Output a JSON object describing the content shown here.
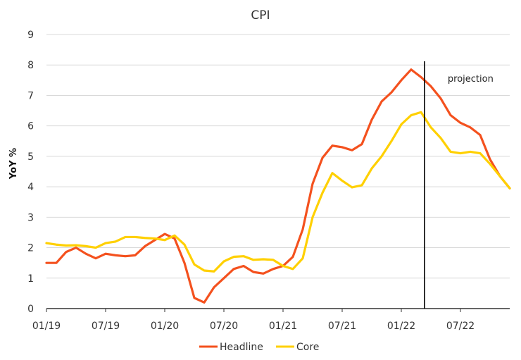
{
  "chart_data": {
    "type": "line",
    "title": "CPI",
    "xlabel": "",
    "ylabel": "YoY %",
    "ylim": [
      0,
      9
    ],
    "yticks": [
      0,
      1,
      2,
      3,
      4,
      5,
      6,
      7,
      8,
      9
    ],
    "grid": "horizontal",
    "legend_position": "bottom",
    "x_tick_labels": [
      "01/19",
      "07/19",
      "01/20",
      "07/20",
      "01/21",
      "07/21",
      "01/22",
      "07/22"
    ],
    "x": [
      "01/19",
      "02/19",
      "03/19",
      "04/19",
      "05/19",
      "06/19",
      "07/19",
      "08/19",
      "09/19",
      "10/19",
      "11/19",
      "12/19",
      "01/20",
      "02/20",
      "03/20",
      "04/20",
      "05/20",
      "06/20",
      "07/20",
      "08/20",
      "09/20",
      "10/20",
      "11/20",
      "12/20",
      "01/21",
      "02/21",
      "03/21",
      "04/21",
      "05/21",
      "06/21",
      "07/21",
      "08/21",
      "09/21",
      "10/21",
      "11/21",
      "12/21",
      "01/22",
      "02/22",
      "03/22",
      "04/22",
      "05/22",
      "06/22",
      "07/22",
      "08/22",
      "09/22",
      "10/22",
      "11/22",
      "12/22"
    ],
    "series": [
      {
        "name": "Headline",
        "color": "#f4511e",
        "values": [
          1.5,
          1.5,
          1.86,
          2.0,
          1.8,
          1.65,
          1.8,
          1.75,
          1.72,
          1.75,
          2.05,
          2.25,
          2.45,
          2.3,
          1.5,
          0.35,
          0.2,
          0.7,
          1.0,
          1.3,
          1.4,
          1.2,
          1.15,
          1.3,
          1.4,
          1.7,
          2.6,
          4.1,
          4.95,
          5.35,
          5.3,
          5.2,
          5.4,
          6.2,
          6.8,
          7.1,
          7.5,
          7.85,
          7.6,
          7.3,
          6.9,
          6.35,
          6.1,
          5.95,
          5.7,
          4.9,
          4.35,
          3.95
        ]
      },
      {
        "name": "Core",
        "color": "#ffd000",
        "values": [
          2.15,
          2.1,
          2.07,
          2.08,
          2.05,
          2.0,
          2.15,
          2.2,
          2.35,
          2.35,
          2.32,
          2.3,
          2.25,
          2.4,
          2.1,
          1.45,
          1.25,
          1.22,
          1.55,
          1.7,
          1.72,
          1.6,
          1.62,
          1.6,
          1.4,
          1.3,
          1.65,
          3.0,
          3.8,
          4.45,
          4.2,
          3.98,
          4.05,
          4.6,
          5.0,
          5.5,
          6.05,
          6.35,
          6.45,
          5.95,
          5.6,
          5.15,
          5.1,
          5.15,
          5.1,
          4.75,
          4.35,
          3.95
        ]
      }
    ],
    "annotations": [
      {
        "label": "projection",
        "x": "03/22"
      }
    ]
  }
}
